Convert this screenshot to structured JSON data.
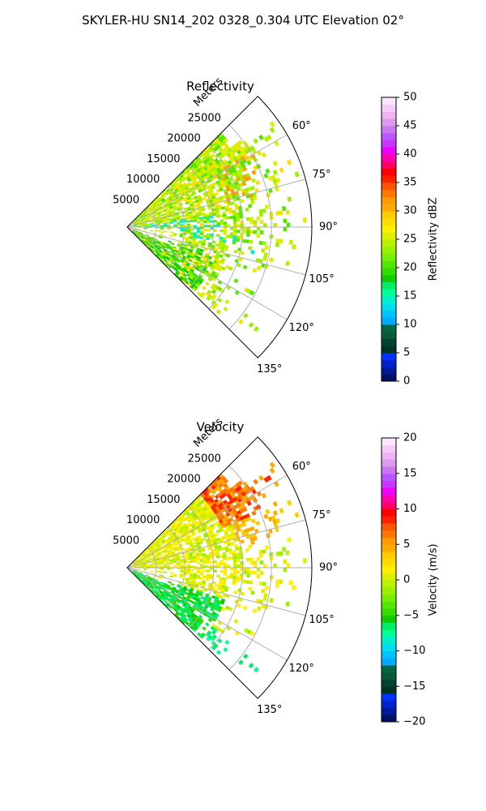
{
  "suptitle": "SKYLER-HU  SN14_202  0328_0.304 UTC Elevation 02°",
  "chart_data": [
    {
      "type": "heatmap",
      "projection": "polar-sector",
      "title": "Reflectivity",
      "radial_label": "Meters",
      "azimuth_range_deg": [
        45,
        135
      ],
      "range_max_m": 32000,
      "radial_ticks": [
        5000,
        10000,
        15000,
        20000,
        25000
      ],
      "radial_tick_labels": [
        "5000",
        "10000",
        "15000",
        "20000",
        "25000"
      ],
      "azimuth_ticks": [
        60,
        75,
        90,
        105,
        120,
        135
      ],
      "azimuth_tick_labels": [
        "60°",
        "75°",
        "90°",
        "105°",
        "120°",
        "135°"
      ],
      "grid": true,
      "colorbar": {
        "label": "Reflectivity dBZ",
        "range": [
          0,
          50
        ],
        "ticks": [
          0,
          5,
          10,
          15,
          20,
          25,
          30,
          35,
          40,
          45,
          50
        ],
        "tick_labels": [
          "0",
          "5",
          "10",
          "15",
          "20",
          "25",
          "30",
          "35",
          "40",
          "45",
          "50"
        ],
        "colors": [
          "#001166",
          "#001a99",
          "#0022cc",
          "#0033ff",
          "#003322",
          "#004433",
          "#0a5a3a",
          "#006644",
          "#00aaff",
          "#00c4ff",
          "#00ddee",
          "#00eecc",
          "#00ff99",
          "#00ee66",
          "#11cc00",
          "#33dd00",
          "#55e600",
          "#77ee00",
          "#99f000",
          "#bbf000",
          "#ddee00",
          "#ffee00",
          "#ffdd00",
          "#ffcc00",
          "#ffaa00",
          "#ff9900",
          "#ff7700",
          "#ff5500",
          "#ff2200",
          "#ff0000",
          "#ff0066",
          "#ff00aa",
          "#ee00ff",
          "#cc33ff",
          "#bb55ff",
          "#cc77ee",
          "#dd99ee",
          "#eeb3f2",
          "#f5ccf7",
          "#fbe6fc"
        ]
      }
    },
    {
      "type": "heatmap",
      "projection": "polar-sector",
      "title": "Velocity",
      "radial_label": "Meters",
      "azimuth_range_deg": [
        45,
        135
      ],
      "range_max_m": 32000,
      "radial_ticks": [
        5000,
        10000,
        15000,
        20000,
        25000
      ],
      "radial_tick_labels": [
        "5000",
        "10000",
        "15000",
        "20000",
        "25000"
      ],
      "azimuth_ticks": [
        60,
        75,
        90,
        105,
        120,
        135
      ],
      "azimuth_tick_labels": [
        "60°",
        "75°",
        "90°",
        "105°",
        "120°",
        "135°"
      ],
      "grid": true,
      "colorbar": {
        "label": "Velocity (m/s)",
        "range": [
          -20,
          20
        ],
        "ticks": [
          -20,
          -15,
          -10,
          -5,
          0,
          5,
          10,
          15,
          20
        ],
        "tick_labels": [
          "−20",
          "−15",
          "−10",
          "−5",
          "0",
          "5",
          "10",
          "15",
          "20"
        ],
        "colors": [
          "#001166",
          "#001a99",
          "#0022cc",
          "#0033ff",
          "#003322",
          "#004433",
          "#0a5a3a",
          "#006644",
          "#00aaff",
          "#00c4ff",
          "#00ddee",
          "#00eecc",
          "#00ff99",
          "#00ee66",
          "#11cc00",
          "#33dd00",
          "#55e600",
          "#77ee00",
          "#99f000",
          "#bbf000",
          "#ddee00",
          "#ffee00",
          "#ffdd00",
          "#ffcc00",
          "#ffaa00",
          "#ff9900",
          "#ff7700",
          "#ff5500",
          "#ff2200",
          "#ff0000",
          "#ff0066",
          "#ff00aa",
          "#ee00ff",
          "#cc33ff",
          "#bb55ff",
          "#cc77ee",
          "#dd99ee",
          "#eeb3f2",
          "#f5ccf7",
          "#fbe6fc"
        ]
      }
    }
  ]
}
